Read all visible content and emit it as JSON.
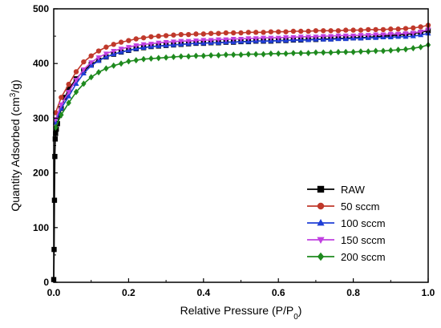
{
  "chart_data": {
    "type": "line",
    "xlabel_parts": [
      "Relative Pressure (P/P",
      "0",
      ")"
    ],
    "ylabel_parts": [
      "Quantity Adsorbed (cm",
      "3",
      "/g)"
    ],
    "xlim": [
      0,
      1.0
    ],
    "ylim": [
      0,
      500
    ],
    "xticks": [
      0.0,
      0.2,
      0.4,
      0.6,
      0.8,
      1.0
    ],
    "xtick_labels": [
      "0.0",
      "0.2",
      "0.4",
      "0.6",
      "0.8",
      "1.0"
    ],
    "yticks": [
      0,
      100,
      200,
      300,
      400,
      500
    ],
    "ytick_labels": [
      "0",
      "100",
      "200",
      "300",
      "400",
      "500"
    ],
    "grid": false,
    "legend_position": "bottom-right",
    "series": [
      {
        "name": "RAW",
        "color": "#000000",
        "marker": "square",
        "x": [
          0.0,
          0.001,
          0.002,
          0.003,
          0.004,
          0.005,
          0.007,
          0.01,
          0.015,
          0.02,
          0.03,
          0.04,
          0.06,
          0.08,
          0.1,
          0.12,
          0.14,
          0.16,
          0.18,
          0.2,
          0.22,
          0.24,
          0.26,
          0.28,
          0.3,
          0.32,
          0.34,
          0.36,
          0.38,
          0.4,
          0.42,
          0.44,
          0.46,
          0.48,
          0.5,
          0.52,
          0.54,
          0.56,
          0.58,
          0.6,
          0.62,
          0.64,
          0.66,
          0.68,
          0.7,
          0.72,
          0.74,
          0.76,
          0.78,
          0.8,
          0.82,
          0.84,
          0.86,
          0.88,
          0.9,
          0.92,
          0.94,
          0.96,
          0.98,
          1.0
        ],
        "y": [
          5,
          60,
          150,
          230,
          262,
          272,
          280,
          290,
          305,
          318,
          338,
          353,
          372,
          387,
          398,
          406,
          412,
          417,
          421,
          424,
          427,
          429,
          431,
          432,
          433,
          434,
          435,
          436,
          437,
          437,
          438,
          438,
          439,
          439,
          440,
          440,
          441,
          441,
          441,
          442,
          442,
          443,
          443,
          444,
          444,
          445,
          445,
          446,
          446,
          447,
          447,
          448,
          449,
          450,
          451,
          452,
          453,
          455,
          457,
          460
        ]
      },
      {
        "name": "50 sccm",
        "color": "#c0392b",
        "marker": "circle",
        "x": [
          0.005,
          0.02,
          0.04,
          0.06,
          0.08,
          0.1,
          0.12,
          0.14,
          0.16,
          0.18,
          0.2,
          0.22,
          0.24,
          0.26,
          0.28,
          0.3,
          0.32,
          0.34,
          0.36,
          0.38,
          0.4,
          0.42,
          0.44,
          0.46,
          0.48,
          0.5,
          0.52,
          0.54,
          0.56,
          0.58,
          0.6,
          0.62,
          0.64,
          0.66,
          0.68,
          0.7,
          0.72,
          0.74,
          0.76,
          0.78,
          0.8,
          0.82,
          0.84,
          0.86,
          0.88,
          0.9,
          0.92,
          0.94,
          0.96,
          0.98,
          1.0
        ],
        "y": [
          310,
          338,
          362,
          385,
          403,
          414,
          423,
          430,
          435,
          439,
          442,
          445,
          447,
          449,
          450,
          451,
          452,
          453,
          453,
          454,
          454,
          455,
          455,
          456,
          456,
          456,
          457,
          457,
          457,
          458,
          458,
          458,
          459,
          459,
          459,
          460,
          460,
          460,
          460,
          461,
          461,
          461,
          462,
          462,
          462,
          463,
          463,
          464,
          465,
          467,
          470
        ]
      },
      {
        "name": "100 sccm",
        "color": "#1f3fd6",
        "marker": "triangle-up",
        "x": [
          0.005,
          0.02,
          0.04,
          0.06,
          0.08,
          0.1,
          0.12,
          0.14,
          0.16,
          0.18,
          0.2,
          0.22,
          0.24,
          0.26,
          0.28,
          0.3,
          0.32,
          0.34,
          0.36,
          0.38,
          0.4,
          0.42,
          0.44,
          0.46,
          0.48,
          0.5,
          0.52,
          0.54,
          0.56,
          0.58,
          0.6,
          0.62,
          0.64,
          0.66,
          0.68,
          0.7,
          0.72,
          0.74,
          0.76,
          0.78,
          0.8,
          0.82,
          0.84,
          0.86,
          0.88,
          0.9,
          0.92,
          0.94,
          0.96,
          0.98,
          1.0
        ],
        "y": [
          292,
          318,
          340,
          363,
          382,
          396,
          405,
          412,
          417,
          421,
          424,
          427,
          429,
          431,
          432,
          433,
          434,
          435,
          436,
          437,
          437,
          438,
          438,
          439,
          439,
          440,
          440,
          441,
          441,
          441,
          442,
          442,
          443,
          443,
          443,
          444,
          444,
          444,
          445,
          445,
          446,
          446,
          447,
          447,
          448,
          448,
          449,
          449,
          450,
          452,
          455
        ]
      },
      {
        "name": "150 sccm",
        "color": "#c040e0",
        "marker": "triangle-down",
        "x": [
          0.005,
          0.02,
          0.04,
          0.06,
          0.08,
          0.1,
          0.12,
          0.14,
          0.16,
          0.18,
          0.2,
          0.22,
          0.24,
          0.26,
          0.28,
          0.3,
          0.32,
          0.34,
          0.36,
          0.38,
          0.4,
          0.42,
          0.44,
          0.46,
          0.48,
          0.5,
          0.52,
          0.54,
          0.56,
          0.58,
          0.6,
          0.62,
          0.64,
          0.66,
          0.68,
          0.7,
          0.72,
          0.74,
          0.76,
          0.78,
          0.8,
          0.82,
          0.84,
          0.86,
          0.88,
          0.9,
          0.92,
          0.94,
          0.96,
          0.98,
          1.0
        ],
        "y": [
          298,
          325,
          348,
          370,
          389,
          402,
          411,
          418,
          423,
          427,
          430,
          433,
          435,
          436,
          438,
          439,
          440,
          441,
          441,
          442,
          443,
          443,
          444,
          444,
          445,
          445,
          446,
          446,
          447,
          447,
          447,
          448,
          448,
          449,
          449,
          449,
          450,
          450,
          451,
          451,
          451,
          452,
          452,
          453,
          453,
          454,
          454,
          455,
          456,
          458,
          462
        ]
      },
      {
        "name": "200 sccm",
        "color": "#1e8a1e",
        "marker": "diamond",
        "x": [
          0.005,
          0.02,
          0.04,
          0.06,
          0.08,
          0.1,
          0.12,
          0.14,
          0.16,
          0.18,
          0.2,
          0.22,
          0.24,
          0.26,
          0.28,
          0.3,
          0.32,
          0.34,
          0.36,
          0.38,
          0.4,
          0.42,
          0.44,
          0.46,
          0.48,
          0.5,
          0.52,
          0.54,
          0.56,
          0.58,
          0.6,
          0.62,
          0.64,
          0.66,
          0.68,
          0.7,
          0.72,
          0.74,
          0.76,
          0.78,
          0.8,
          0.82,
          0.84,
          0.86,
          0.88,
          0.9,
          0.92,
          0.94,
          0.96,
          0.98,
          1.0
        ],
        "y": [
          283,
          306,
          328,
          348,
          363,
          375,
          384,
          391,
          396,
          400,
          404,
          406,
          408,
          409,
          410,
          411,
          412,
          413,
          413,
          414,
          414,
          415,
          415,
          416,
          416,
          416,
          417,
          417,
          417,
          418,
          418,
          418,
          419,
          419,
          419,
          420,
          420,
          420,
          421,
          421,
          421,
          422,
          422,
          423,
          423,
          424,
          425,
          426,
          428,
          430,
          434
        ]
      }
    ]
  }
}
